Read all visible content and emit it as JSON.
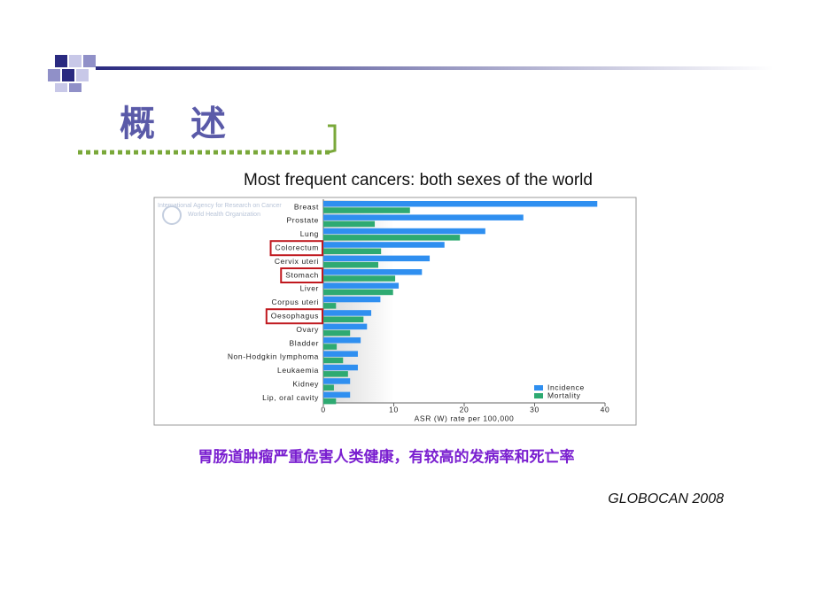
{
  "slide": {
    "title": "概　述",
    "caption": "胃肠道肿瘤严重危害人类健康，有较高的发病率和死亡率",
    "source": "GLOBOCAN 2008"
  },
  "chart_data": {
    "type": "bar",
    "orientation": "horizontal",
    "title": "Most frequent cancers: both sexes of the world",
    "watermark": [
      "International Agency for Research on Cancer",
      "World Health Organization"
    ],
    "categories": [
      "Breast",
      "Prostate",
      "Lung",
      "Colorectum",
      "Cervix uteri",
      "Stomach",
      "Liver",
      "Corpus uteri",
      "Oesophagus",
      "Ovary",
      "Bladder",
      "Non-Hodgkin lymphoma",
      "Leukaemia",
      "Kidney",
      "Lip, oral cavity"
    ],
    "highlighted_categories": [
      3,
      5,
      8
    ],
    "series": [
      {
        "name": "Incidence",
        "color": "#2f8ff0",
        "values": [
          38.9,
          28.4,
          23.0,
          17.2,
          15.1,
          14.0,
          10.7,
          8.1,
          6.8,
          6.2,
          5.3,
          4.9,
          4.9,
          3.8,
          3.8
        ]
      },
      {
        "name": "Mortality",
        "color": "#2eaa72",
        "values": [
          12.3,
          7.3,
          19.4,
          8.2,
          7.8,
          10.2,
          9.9,
          1.8,
          5.7,
          3.8,
          1.9,
          2.8,
          3.5,
          1.5,
          1.8
        ]
      }
    ],
    "xlabel": "ASR (W) rate per 100,000",
    "xlim": [
      0,
      40
    ],
    "xticks": [
      0,
      10,
      20,
      30,
      40
    ],
    "legend": "bottom-right"
  }
}
